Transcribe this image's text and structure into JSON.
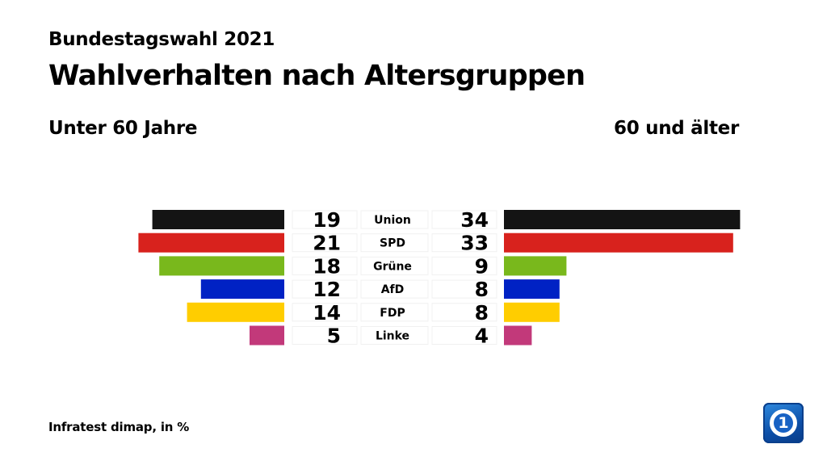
{
  "header": {
    "supertitle": "Bundestagswahl 2021",
    "title": "Wahlverhalten nach Altersgruppen"
  },
  "chart_data": {
    "type": "bar",
    "orientation": "horizontal-butterfly",
    "categories": [
      "Union",
      "SPD",
      "Grüne",
      "AfD",
      "FDP",
      "Linke"
    ],
    "series": [
      {
        "name": "Unter 60 Jahre",
        "values": [
          19,
          21,
          18,
          12,
          14,
          5
        ]
      },
      {
        "name": "60 und älter",
        "values": [
          34,
          33,
          9,
          8,
          8,
          4
        ]
      }
    ],
    "colors": [
      "#141414",
      "#d8221d",
      "#79b81c",
      "#0022c4",
      "#ffcd00",
      "#c2397a"
    ],
    "unit": "%",
    "grid": false
  },
  "source": "Infratest dimap, in %",
  "logo": {
    "icon": "ard-logo-icon",
    "glyph": "1",
    "color": "#1862c4"
  }
}
